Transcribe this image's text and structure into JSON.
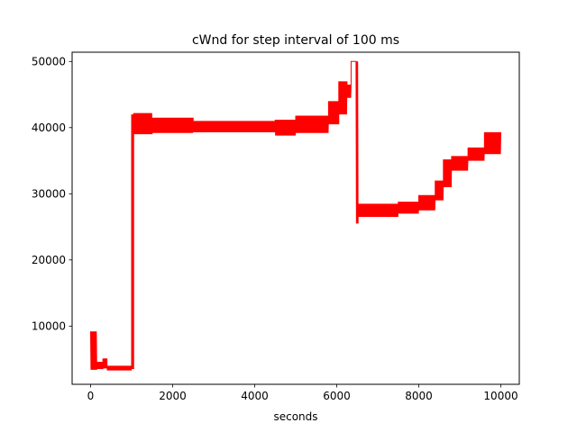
{
  "chart_data": {
    "type": "line",
    "title": "cWnd for step interval of 100 ms",
    "xlabel": "seconds",
    "ylabel": "",
    "xlim": [
      -450,
      10450
    ],
    "ylim": [
      1200,
      51400
    ],
    "x_ticks": [
      0,
      2000,
      4000,
      6000,
      8000,
      10000
    ],
    "x_tick_labels": [
      "0",
      "2000",
      "4000",
      "6000",
      "8000",
      "10000"
    ],
    "y_ticks": [
      10000,
      20000,
      30000,
      40000,
      50000
    ],
    "y_tick_labels": [
      "10000",
      "20000",
      "30000",
      "40000",
      "50000"
    ],
    "grid": false,
    "legend": "none",
    "series": [
      {
        "color": "#ff0000",
        "segments": [
          {
            "x_start": 0,
            "x_end": 150,
            "y_low": 3400,
            "y_high": 9200
          },
          {
            "x_start": 150,
            "x_end": 300,
            "y_low": 3500,
            "y_high": 4600
          },
          {
            "x_start": 300,
            "x_end": 400,
            "y_low": 3600,
            "y_high": 5100
          },
          {
            "x_start": 400,
            "x_end": 1000,
            "y_low": 3300,
            "y_high": 4000
          },
          {
            "x_start": 1000,
            "x_end": 1050,
            "y_low": 3500,
            "y_high": 42000
          },
          {
            "x_start": 1050,
            "x_end": 1500,
            "y_low": 39000,
            "y_high": 42200
          },
          {
            "x_start": 1500,
            "x_end": 2500,
            "y_low": 39200,
            "y_high": 41500
          },
          {
            "x_start": 2500,
            "x_end": 4500,
            "y_low": 39300,
            "y_high": 41000
          },
          {
            "x_start": 4500,
            "x_end": 5000,
            "y_low": 38800,
            "y_high": 41200
          },
          {
            "x_start": 5000,
            "x_end": 5800,
            "y_low": 39200,
            "y_high": 41800
          },
          {
            "x_start": 5800,
            "x_end": 6050,
            "y_low": 40500,
            "y_high": 44000
          },
          {
            "x_start": 6050,
            "x_end": 6250,
            "y_low": 42000,
            "y_high": 47000
          },
          {
            "x_start": 6250,
            "x_end": 6350,
            "y_low": 44500,
            "y_high": 46500
          },
          {
            "x_start": 6350,
            "x_end": 6470,
            "y_low": 50000,
            "y_high": 50000
          },
          {
            "x_start": 6470,
            "x_end": 6520,
            "y_low": 25500,
            "y_high": 50000
          },
          {
            "x_start": 6520,
            "x_end": 7500,
            "y_low": 26500,
            "y_high": 28500
          },
          {
            "x_start": 7500,
            "x_end": 8000,
            "y_low": 27000,
            "y_high": 28800
          },
          {
            "x_start": 8000,
            "x_end": 8400,
            "y_low": 27500,
            "y_high": 29800
          },
          {
            "x_start": 8400,
            "x_end": 8600,
            "y_low": 29000,
            "y_high": 32000
          },
          {
            "x_start": 8600,
            "x_end": 8800,
            "y_low": 31000,
            "y_high": 35200
          },
          {
            "x_start": 8800,
            "x_end": 9200,
            "y_low": 33500,
            "y_high": 35700
          },
          {
            "x_start": 9200,
            "x_end": 9600,
            "y_low": 35000,
            "y_high": 37000
          },
          {
            "x_start": 9600,
            "x_end": 10000,
            "y_low": 36000,
            "y_high": 39300
          }
        ]
      }
    ]
  }
}
